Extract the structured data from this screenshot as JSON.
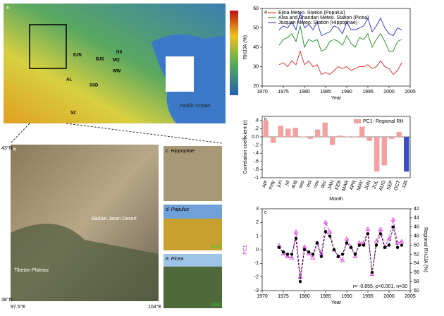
{
  "map_a": {
    "panel": "a",
    "ocean": "Pacific Ocean",
    "stations": [
      "EJN",
      "AL",
      "SSD",
      "MQ",
      "SZ",
      "WW",
      "HX",
      "BJS"
    ]
  },
  "map_b": {
    "panel": "b",
    "desert": "Badain Jaran Desert",
    "plateau": "Tibetan Plateau",
    "lat_top": "43°N",
    "lat_bottom": "38°N",
    "lon_left": "97.5°E",
    "lon_right": "104°E"
  },
  "photos": [
    {
      "letter": "c.",
      "genus": "Hippophae"
    },
    {
      "letter": "d.",
      "genus": "Populus",
      "code": "EJN"
    },
    {
      "letter": "e.",
      "genus": "Picea",
      "code": "SSD"
    }
  ],
  "chart_data": [
    {
      "type": "line",
      "panel": "a",
      "xlabel": "Year",
      "ylabel": "RHJJA (%)",
      "xlim": [
        1970,
        2005
      ],
      "xticks": [
        1970,
        1975,
        1980,
        1985,
        1990,
        1995,
        2000,
        2005
      ],
      "ylim": [
        20,
        60
      ],
      "yticks": [
        20,
        30,
        40,
        50,
        60
      ],
      "legend": "upper left",
      "x": [
        1974,
        1975,
        1976,
        1977,
        1978,
        1979,
        1980,
        1981,
        1982,
        1983,
        1984,
        1985,
        1986,
        1987,
        1988,
        1989,
        1990,
        1991,
        1992,
        1993,
        1994,
        1995,
        1996,
        1997,
        1998,
        1999,
        2000,
        2001,
        2002,
        2003
      ],
      "series": [
        {
          "name": "Ejina Meteo. Station (Populus)",
          "color": "#e02020",
          "values": [
            31,
            32,
            30,
            33,
            31,
            38,
            31,
            33,
            30,
            31,
            26,
            27,
            26,
            28,
            30,
            29,
            30,
            28,
            29,
            30,
            30,
            31,
            29,
            30,
            33,
            30,
            29,
            26,
            28,
            32
          ]
        },
        {
          "name": "Alxa and Shandan Meteo. Station (Picea)",
          "color": "#1a8a1a",
          "values": [
            41,
            44,
            45,
            47,
            43,
            51,
            40,
            44,
            43,
            44,
            38,
            39,
            43,
            44,
            43,
            41,
            46,
            42,
            40,
            45,
            44,
            47,
            40,
            44,
            47,
            43,
            38,
            38,
            43,
            44
          ]
        },
        {
          "name": "Jiuquan Meteo. Station (Hippophae)",
          "color": "#1f2fd0",
          "values": [
            49,
            51,
            50,
            53,
            49,
            58,
            50,
            52,
            49,
            53,
            46,
            47,
            48,
            51,
            50,
            47,
            53,
            49,
            49,
            50,
            51,
            55,
            48,
            51,
            55,
            50,
            47,
            46,
            50,
            49
          ]
        }
      ]
    },
    {
      "type": "bar",
      "panel": "b",
      "xlabel": "Month",
      "ylabel": "Correlation coefficient (r)",
      "ylim": [
        -1,
        0.5
      ],
      "yticks": [
        {
          "value": 0.4,
          "label": ".4"
        },
        {
          "value": 0.2,
          "label": ".2"
        },
        {
          "value": 0,
          "label": "0.0"
        },
        {
          "value": -0.2,
          "label": "-.2"
        },
        {
          "value": -0.4,
          "label": "-.4"
        },
        {
          "value": -0.6,
          "label": "-.6"
        },
        {
          "value": -0.8,
          "label": "-.8"
        },
        -1
      ],
      "legend": "upper right",
      "series_name": "PC1- Regional RH",
      "categories": [
        "apr",
        "may",
        "jun",
        "jul",
        "aug",
        "sep",
        "oct",
        "nov",
        "dec",
        "JAN",
        "FEB",
        "MAR",
        "APR",
        "MAY",
        "JUN",
        "JUL",
        "AUG",
        "SEP",
        "OCT",
        "JJA"
      ],
      "values": [
        0.4,
        -0.15,
        0.27,
        0.2,
        0.22,
        0.01,
        -0.05,
        0.18,
        0.35,
        -0.2,
        0.03,
        0.01,
        0.01,
        0.25,
        -0.1,
        -0.85,
        -0.7,
        -0.05,
        0.12,
        -0.85
      ],
      "colors": [
        "#f4a0a0",
        "#f4a0a0",
        "#f4a0a0",
        "#f4a0a0",
        "#f4a0a0",
        "#f4a0a0",
        "#f4a0a0",
        "#f4a0a0",
        "#f4a0a0",
        "#f4a0a0",
        "#f4a0a0",
        "#f4a0a0",
        "#f4a0a0",
        "#f4a0a0",
        "#f4a0a0",
        "#f4a0a0",
        "#f4a0a0",
        "#f4a0a0",
        "#f4a0a0",
        "#3a4fc4"
      ]
    },
    {
      "type": "line",
      "panel": "c",
      "xlabel": "Year",
      "ylabel": "PC1",
      "ylabel_color": "#e020e0",
      "y2label": "Regional RHJJA (%)",
      "annotation": "r= -0.855, p<0.001, n=30",
      "xlim": [
        1970,
        2005
      ],
      "xticks": [
        1970,
        1975,
        1980,
        1985,
        1990,
        1995,
        2000,
        2005
      ],
      "ylim": [
        -3,
        3
      ],
      "yticks": [
        -3,
        -2,
        -1,
        0,
        1,
        2,
        3
      ],
      "y2lim": [
        60,
        42
      ],
      "y2ticks": [
        42,
        44,
        46,
        48,
        50,
        52,
        54,
        56,
        58,
        60
      ],
      "x": [
        1974,
        1975,
        1976,
        1977,
        1978,
        1979,
        1980,
        1981,
        1982,
        1983,
        1984,
        1985,
        1986,
        1987,
        1988,
        1989,
        1990,
        1991,
        1992,
        1993,
        1994,
        1995,
        1996,
        1997,
        1998,
        1999,
        2000,
        2001,
        2002,
        2003
      ],
      "series": [
        {
          "name": "PC1",
          "color": "#e020e0",
          "marker": "triangle",
          "dash": "4 2",
          "values": [
            0.3,
            -0.3,
            -0.5,
            -0.6,
            1.3,
            -2.0,
            0.2,
            -0.3,
            -0.6,
            0.5,
            -0.3,
            2.0,
            1.3,
            0.0,
            -0.5,
            -0.8,
            0.8,
            0.2,
            -0.5,
            0.5,
            0.5,
            1.5,
            -1.8,
            0.6,
            1.5,
            0.2,
            0.8,
            2.2,
            0.5,
            0.6
          ]
        },
        {
          "name": "Regional RH",
          "color": "#000000",
          "marker": "circle",
          "axis": "y2",
          "dash": "3 2",
          "values": [
            50.5,
            51.5,
            52,
            52,
            48.5,
            58,
            51,
            51.5,
            52,
            49.5,
            52.5,
            47,
            48,
            51,
            52.5,
            52,
            49.5,
            50.5,
            52,
            50,
            50,
            47.5,
            56,
            50,
            47.5,
            50.5,
            50,
            46,
            50.5,
            50
          ]
        }
      ]
    }
  ]
}
